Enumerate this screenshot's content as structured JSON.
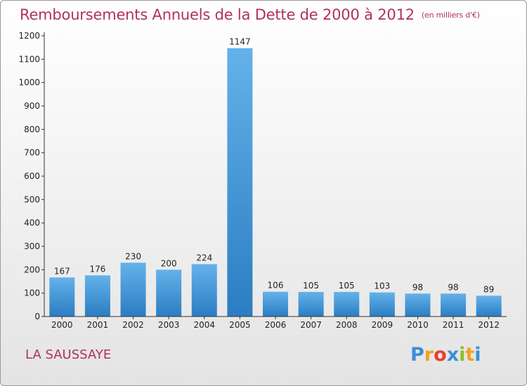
{
  "header": {
    "title": "Remboursements Annuels de la Dette de 2000 à 2012",
    "unit": "(en milliers d'€)"
  },
  "footer": {
    "commune": "LA SAUSSAYE",
    "logo_letters": [
      "P",
      "r",
      "o",
      "x",
      "i",
      "t",
      "i"
    ],
    "logo_colors": [
      "#3a8fd8",
      "#f4a11c",
      "#e8402a",
      "#3a8fd8",
      "#8bbf2a",
      "#f4a11c",
      "#3a8fd8"
    ]
  },
  "colors": {
    "bar_light": "#64b2ea",
    "bar_dark": "#2b7dc2",
    "axis": "#333333",
    "title": "#b1325a"
  },
  "chart_data": {
    "type": "bar",
    "title": "Remboursements Annuels de la Dette de 2000 à 2012",
    "xlabel": "",
    "ylabel": "",
    "categories": [
      "2000",
      "2001",
      "2002",
      "2003",
      "2004",
      "2005",
      "2006",
      "2007",
      "2008",
      "2009",
      "2010",
      "2011",
      "2012"
    ],
    "values": [
      167,
      176,
      230,
      200,
      224,
      1147,
      106,
      105,
      105,
      103,
      98,
      98,
      89
    ],
    "ylim": [
      0,
      1200
    ],
    "yticks": [
      0,
      100,
      200,
      300,
      400,
      500,
      600,
      700,
      800,
      900,
      1000,
      1100,
      1200
    ],
    "grid": false,
    "legend": "none"
  }
}
